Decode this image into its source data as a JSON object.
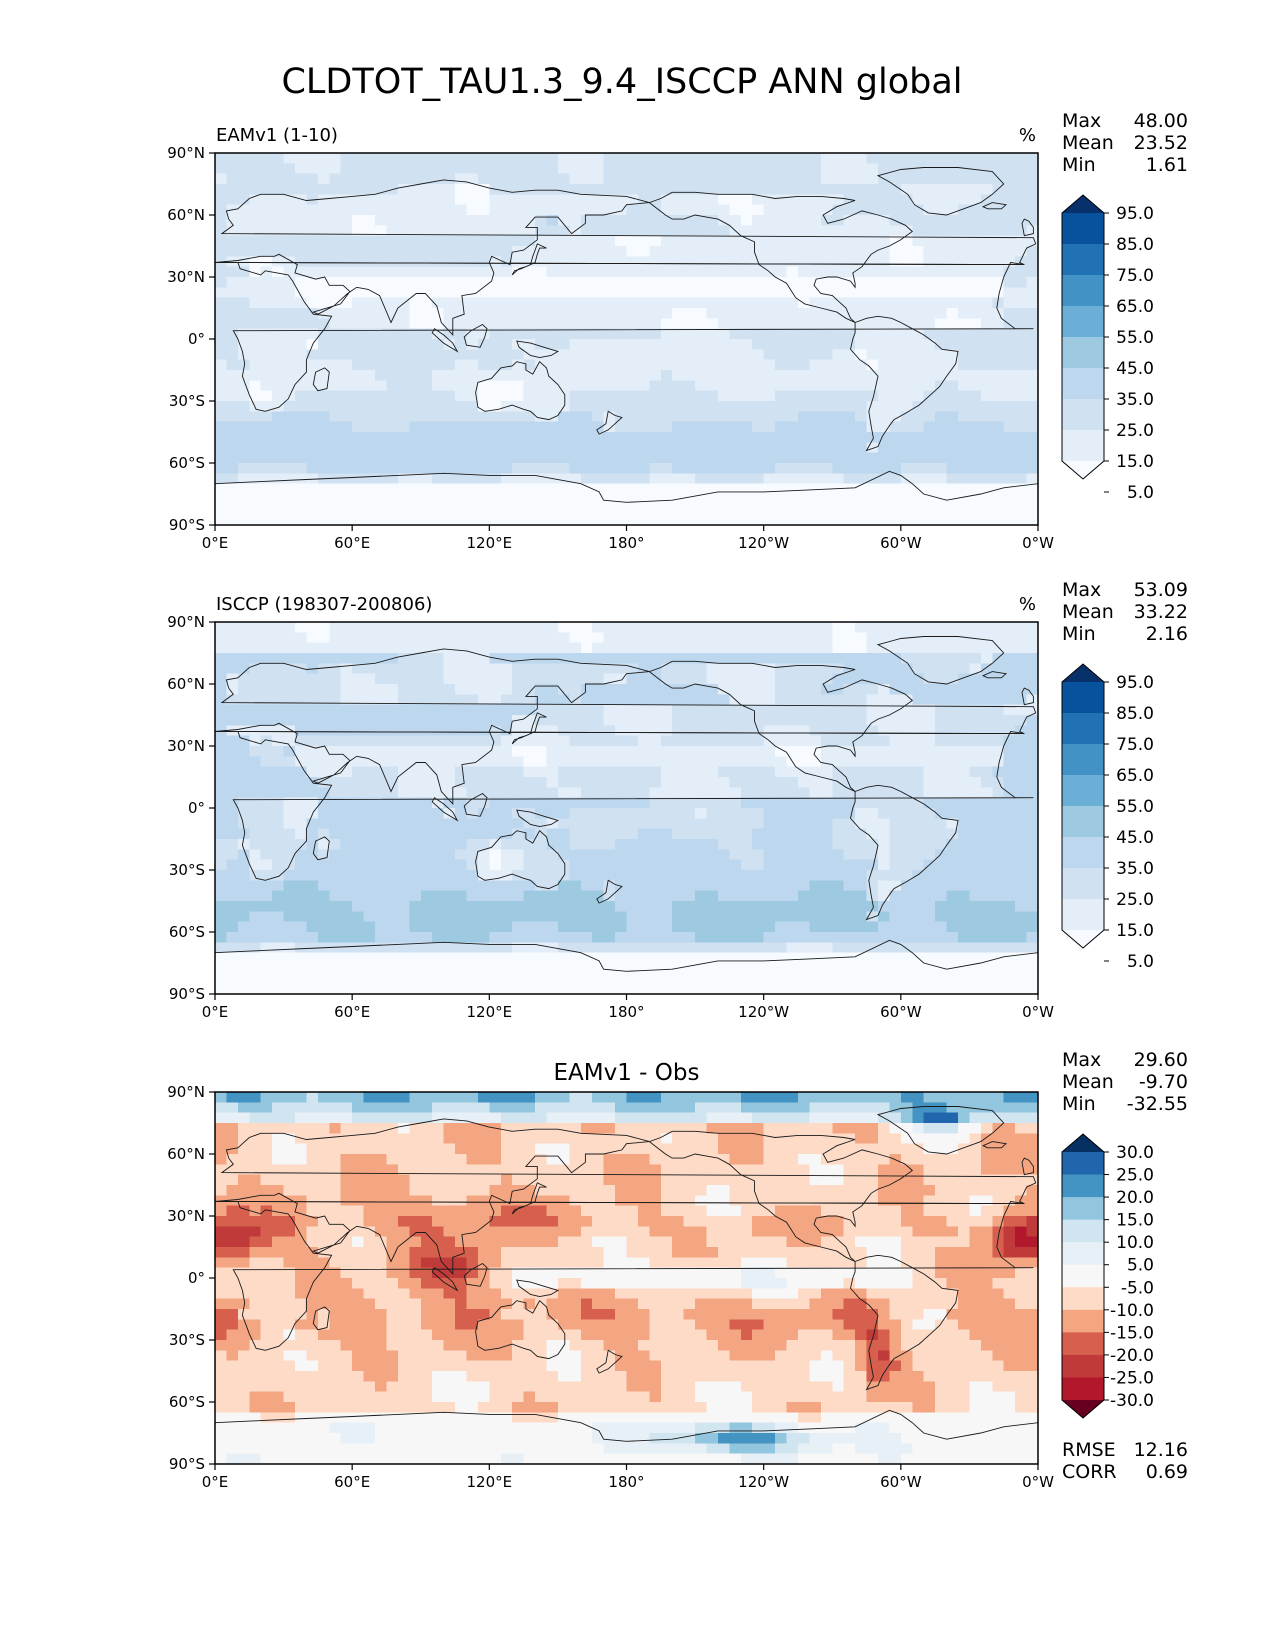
{
  "title": "CLDTOT_TAU1.3_9.4_ISCCP ANN global",
  "chart_data": [
    {
      "type": "heatmap",
      "label": "EAMv1 (1-10)",
      "units": "%",
      "stats": {
        "max_label": "Max",
        "max": "48.00",
        "mean_label": "Mean",
        "mean": "23.52",
        "min_label": "Min",
        "min": "1.61"
      },
      "xticks": [
        "0°E",
        "60°E",
        "120°E",
        "180°",
        "120°W",
        "60°W",
        "0°W"
      ],
      "yticks": [
        "90°N",
        "60°N",
        "30°N",
        "0°",
        "30°S",
        "60°S",
        "90°S"
      ],
      "xlim": [
        0,
        360
      ],
      "ylim": [
        -90,
        90
      ],
      "colorbar": {
        "levels": [
          "95.0",
          "85.0",
          "75.0",
          "65.0",
          "55.0",
          "45.0",
          "35.0",
          "25.0",
          "15.0",
          "5.0"
        ],
        "colors": [
          "#08306b",
          "#08519c",
          "#2171b5",
          "#4292c6",
          "#6baed6",
          "#9ecae1",
          "#bdd7ee",
          "#d0e1f2",
          "#e3eef9",
          "#f7fbff"
        ],
        "extend": "both"
      },
      "field": {
        "base": 24,
        "sea": 31,
        "south_ocean": 40,
        "subtrop": 20,
        "land": 18,
        "desert": 8,
        "arctic": 27,
        "antarctic": 10,
        "dry_patch": 17
      }
    },
    {
      "type": "heatmap",
      "label": "ISCCP (198307-200806)",
      "units": "%",
      "stats": {
        "max_label": "Max",
        "max": "53.09",
        "mean_label": "Mean",
        "mean": "33.22",
        "min_label": "Min",
        "min": "2.16"
      },
      "xticks": [
        "0°E",
        "60°E",
        "120°E",
        "180°",
        "120°W",
        "60°W",
        "0°W"
      ],
      "yticks": [
        "90°N",
        "60°N",
        "30°N",
        "0°",
        "30°S",
        "60°S",
        "90°S"
      ],
      "xlim": [
        0,
        360
      ],
      "ylim": [
        -90,
        90
      ],
      "colorbar": {
        "levels": [
          "95.0",
          "85.0",
          "75.0",
          "65.0",
          "55.0",
          "45.0",
          "35.0",
          "25.0",
          "15.0",
          "5.0"
        ],
        "colors": [
          "#08306b",
          "#08519c",
          "#2171b5",
          "#4292c6",
          "#6baed6",
          "#9ecae1",
          "#bdd7ee",
          "#d0e1f2",
          "#e3eef9",
          "#f7fbff"
        ],
        "extend": "both"
      },
      "field": {
        "base": 33,
        "sea": 40,
        "south_ocean": 47,
        "subtrop": 36,
        "land": 26,
        "desert": 18,
        "arctic": 18,
        "antarctic": 8,
        "dry_patch": 26
      }
    },
    {
      "type": "heatmap",
      "label": "EAMv1 - Obs",
      "units": "",
      "stats": {
        "max_label": "Max",
        "max": "29.60",
        "mean_label": "Mean",
        "mean": "-9.70",
        "min_label": "Min",
        "min": "-32.55"
      },
      "metrics": {
        "rmse_label": "RMSE",
        "rmse": "12.16",
        "corr_label": "CORR",
        "corr": "0.69"
      },
      "xticks": [
        "0°E",
        "60°E",
        "120°E",
        "180°",
        "120°W",
        "60°W",
        "0°W"
      ],
      "yticks": [
        "90°N",
        "60°N",
        "30°N",
        "0°",
        "30°S",
        "60°S",
        "90°S"
      ],
      "xlim": [
        0,
        360
      ],
      "ylim": [
        -90,
        90
      ],
      "colorbar": {
        "levels": [
          "30.0",
          "25.0",
          "20.0",
          "15.0",
          "10.0",
          "5.0",
          "-5.0",
          "-10.0",
          "-15.0",
          "-20.0",
          "-25.0",
          "-30.0"
        ],
        "colors": [
          "#053061",
          "#2166ac",
          "#4393c3",
          "#92c5de",
          "#d1e5f0",
          "#e7f0f6",
          "#f7f7f7",
          "#fddbc7",
          "#f4a582",
          "#d6604d",
          "#c03a3a",
          "#b2182b",
          "#67001f"
        ],
        "extend": "both"
      },
      "field": {
        "base": -10,
        "sea": -9,
        "south_ocean": -7,
        "subtrop": -14,
        "land": -8,
        "desert": -10,
        "arctic": 10,
        "antarctic": 2,
        "dry_patch": -9
      }
    }
  ]
}
